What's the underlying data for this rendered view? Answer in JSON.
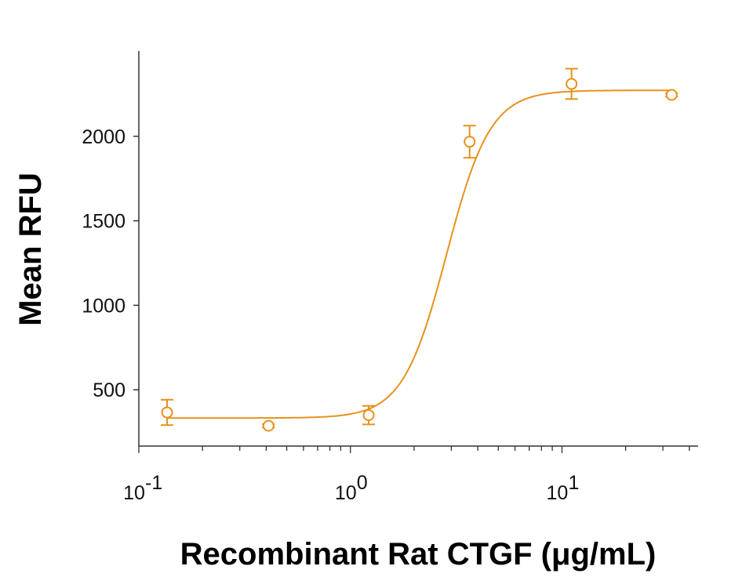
{
  "chart_data": {
    "type": "scatter",
    "title": "",
    "xlabel": "Recombinant Rat CTGF (μg/mL)",
    "ylabel": "Mean RFU",
    "xscale": "log",
    "xlim": [
      0.1,
      44
    ],
    "ylim": [
      167,
      2505
    ],
    "x_ticks": [
      {
        "value": 0.1,
        "base": "10",
        "exp": "-1"
      },
      {
        "value": 1,
        "base": "10",
        "exp": "0"
      },
      {
        "value": 10,
        "base": "10",
        "exp": "1"
      }
    ],
    "y_ticks": [
      500,
      1000,
      1500,
      2000
    ],
    "grid": false,
    "color": "#E8911C",
    "series": [
      {
        "name": "CTGF",
        "x": [
          0.136,
          0.41,
          1.22,
          3.66,
          11.1,
          33
        ],
        "y": [
          366,
          287,
          350,
          1968,
          2310,
          2245
        ],
        "error": [
          75,
          10,
          55,
          95,
          90,
          10
        ]
      }
    ],
    "fit": {
      "model": "4PL",
      "bottom": 333,
      "top": 2272,
      "ec50": 2.85,
      "hill": 4.2
    }
  }
}
